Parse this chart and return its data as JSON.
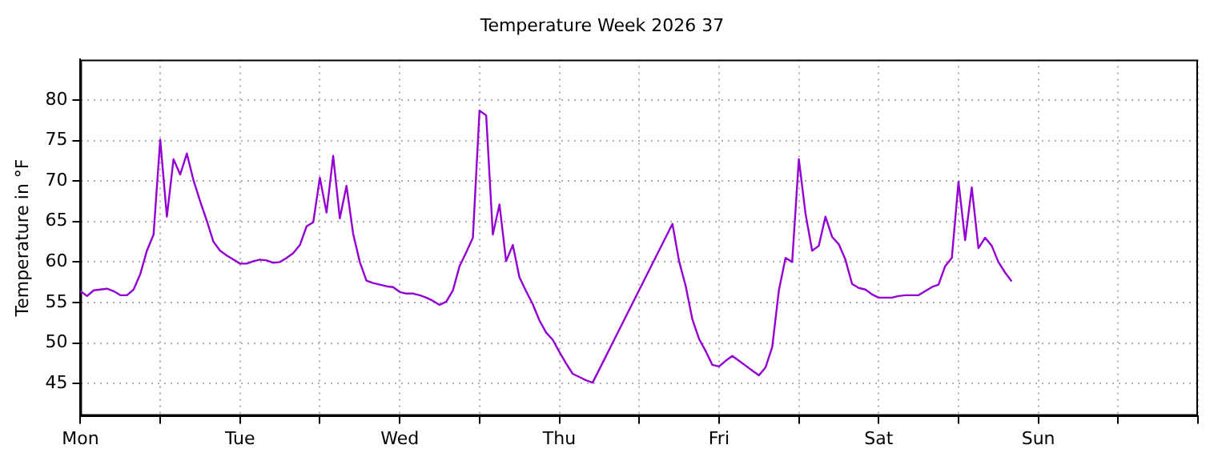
{
  "chart_data": {
    "type": "line",
    "title": "Temperature Week 2026 37",
    "ylabel": "Temperature in °F",
    "categories": [
      "Mon",
      null,
      null,
      null,
      null,
      null,
      null,
      null,
      null,
      null,
      null,
      null,
      null,
      null,
      null,
      null,
      null,
      null,
      null,
      null,
      null,
      null,
      null,
      null,
      "Tue",
      null,
      null,
      null,
      null,
      null,
      null,
      null,
      null,
      null,
      null,
      null,
      null,
      null,
      null,
      null,
      null,
      null,
      null,
      null,
      null,
      null,
      null,
      null,
      "Wed",
      null,
      null,
      null,
      null,
      null,
      null,
      null,
      null,
      null,
      null,
      null,
      null,
      null,
      null,
      null,
      null,
      null,
      null,
      null,
      null,
      null,
      null,
      null,
      "Thu",
      null,
      null,
      null,
      null,
      null,
      null,
      null,
      null,
      null,
      null,
      null,
      null,
      null,
      null,
      null,
      null,
      null,
      null,
      null,
      null,
      null,
      null,
      null,
      "Fri",
      null,
      null,
      null,
      null,
      null,
      null,
      null,
      null,
      null,
      null,
      null,
      null,
      null,
      null,
      null,
      null,
      null,
      null,
      null,
      null,
      null,
      null,
      null,
      "Sat",
      null,
      null,
      null,
      null,
      null,
      null,
      null,
      null,
      null,
      null,
      null,
      null,
      null,
      null,
      null,
      null,
      null,
      null,
      null,
      null,
      null,
      null,
      null,
      "Sun",
      null,
      null,
      null,
      null,
      null,
      null,
      null,
      null,
      null,
      null,
      null,
      null,
      null,
      null,
      null,
      null,
      null,
      null,
      null,
      null,
      null,
      null,
      null,
      null
    ],
    "ylim": [
      41,
      85
    ],
    "yticks": [
      45,
      50,
      55,
      60,
      65,
      70,
      75,
      80
    ],
    "grid": true,
    "marker": "none",
    "series": [
      {
        "color": "#9400d3",
        "values": [
          56.4,
          55.8,
          56.5,
          56.6,
          56.7,
          56.4,
          55.9,
          55.9,
          56.6,
          58.5,
          61.4,
          63.4,
          75.1,
          65.6,
          72.7,
          70.8,
          73.4,
          70.1,
          67.5,
          65.1,
          62.5,
          61.4,
          60.8,
          60.3,
          59.8,
          59.8,
          60.1,
          60.3,
          60.2,
          59.9,
          60,
          60.5,
          61.1,
          62.1,
          64.4,
          64.9,
          70.4,
          66.1,
          73.1,
          65.4,
          69.4,
          63.5,
          60,
          57.7,
          57.4,
          57.2,
          57.0,
          56.9,
          56.3,
          56.1,
          56.1,
          55.9,
          55.6,
          55.2,
          54.7,
          55.1,
          56.5,
          59.5,
          61.2,
          63.0,
          78.7,
          78.1,
          63.4,
          67.1,
          60.1,
          62.1,
          58.1,
          56.4,
          54.8,
          52.8,
          51.3,
          50.4,
          48.9,
          47.5,
          46.2,
          45.8,
          45.4,
          45.1,
          null,
          null,
          null,
          null,
          null,
          null,
          null,
          null,
          null,
          null,
          null,
          64.7,
          60.1,
          57.0,
          52.9,
          50.5,
          49.0,
          47.3,
          47.1,
          47.8,
          48.4,
          47.8,
          47.2,
          46.6,
          46.0,
          47.0,
          49.5,
          56.5,
          60.5,
          60.0,
          72.7,
          66.0,
          61.4,
          62.0,
          65.6,
          63.1,
          62.2,
          60.3,
          57.3,
          56.8,
          56.6,
          56.0,
          55.6,
          55.6,
          55.6,
          55.8,
          55.9,
          55.9,
          55.9,
          56.4,
          56.9,
          57.2,
          59.5,
          60.5,
          69.9,
          62.7,
          69.2,
          61.7,
          63.0,
          62.0,
          60.0,
          58.7,
          57.6,
          null,
          null,
          null,
          null,
          null,
          null,
          null,
          null,
          null,
          null,
          null,
          null,
          null,
          null,
          null,
          null,
          null,
          null,
          null,
          null,
          null,
          null,
          null,
          null,
          null,
          null,
          null,
          null
        ]
      }
    ]
  }
}
